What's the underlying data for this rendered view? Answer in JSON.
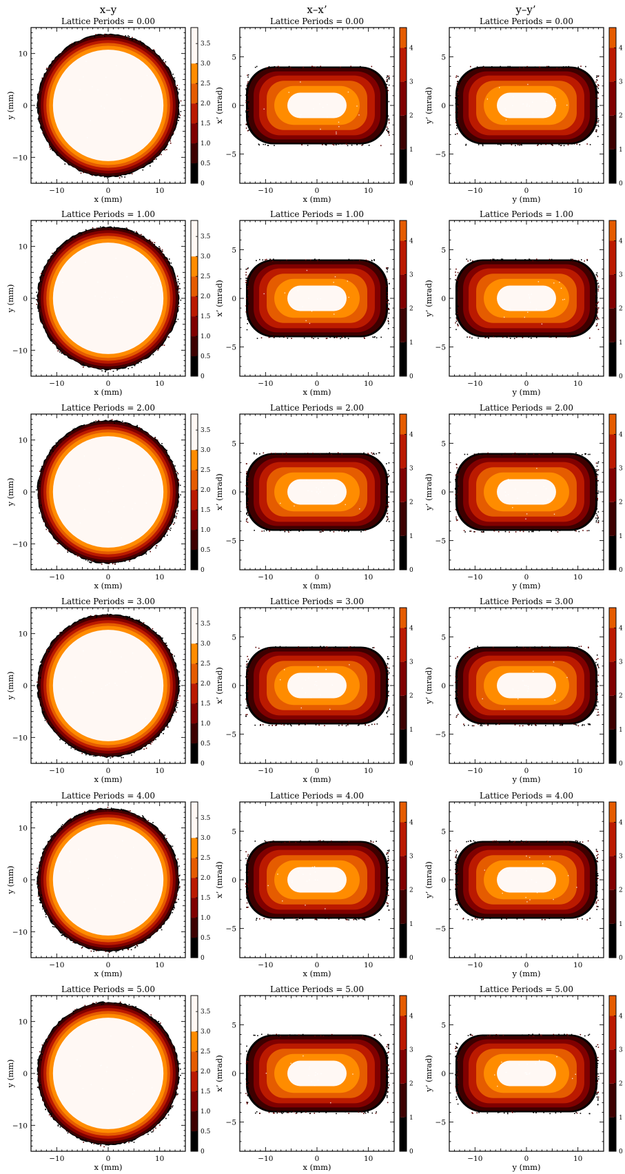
{
  "colors": {
    "levels": [
      "#000000",
      "#3d0000",
      "#800000",
      "#bb1a00",
      "#e55c00",
      "#ff8c00",
      "#fff8f4"
    ]
  },
  "figure": {
    "columns": [
      {
        "title": "x–y",
        "xlabel": "x (mm)",
        "ylabel": "y (mm)",
        "xticks": [
          "−10",
          "0",
          "10"
        ],
        "yticks": [
          "10",
          "0",
          "−10"
        ],
        "xlim": [
          -15,
          15
        ],
        "ylim": [
          -15,
          15
        ],
        "colorbar": {
          "ticks": [
            "3.5",
            "3.0",
            "2.5",
            "2.0",
            "1.5",
            "1.0",
            "0.5",
            "0"
          ],
          "max": 3.9
        }
      },
      {
        "title": "x–x’",
        "xlabel": "x (mm)",
        "ylabel": "x’ (mrad)",
        "xticks": [
          "−10",
          "0",
          "10"
        ],
        "yticks": [
          "5",
          "0",
          "−5"
        ],
        "xlim": [
          -15,
          15
        ],
        "ylim": [
          -8,
          8
        ],
        "colorbar": {
          "ticks": [
            "4",
            "3",
            "2",
            "1",
            "0"
          ],
          "max": 4.6
        }
      },
      {
        "title": "y–y’",
        "xlabel": "y (mm)",
        "ylabel": "y’ (mrad)",
        "xticks": [
          "−10",
          "0",
          "10"
        ],
        "yticks": [
          "5",
          "0",
          "−5"
        ],
        "xlim": [
          -15,
          15
        ],
        "ylim": [
          -8,
          8
        ],
        "colorbar": {
          "ticks": [
            "4",
            "3",
            "2",
            "1",
            "0"
          ],
          "max": 4.6
        }
      }
    ],
    "rows": [
      {
        "title": "Lattice Periods =  0.00"
      },
      {
        "title": "Lattice Periods =  1.00"
      },
      {
        "title": "Lattice Periods =  2.00"
      },
      {
        "title": "Lattice Periods =  3.00"
      },
      {
        "title": "Lattice Periods =  4.00"
      },
      {
        "title": "Lattice Periods =  5.00"
      }
    ]
  },
  "chart_data": {
    "type": "heatmap",
    "layout": "6 rows (lattice periods 0–5) × 3 columns (x–y, x–x’, y–y’) filled density contour plots",
    "panels": [
      {
        "column": "x–y",
        "description": "circular distribution, radius ~14 mm, uniform core to r ~11 mm",
        "contour_extent": {
          "x": [
            -13.8,
            13.8
          ],
          "y": [
            -13.8,
            13.8
          ]
        }
      },
      {
        "column": "x–x’",
        "description": "rounded rectangle, x ±14 mm, x’ ±4 mrad",
        "contour_extent": {
          "x": [
            -13.8,
            13.8
          ],
          "y": [
            -4.0,
            4.0
          ]
        }
      },
      {
        "column": "y–y’",
        "description": "rounded rectangle, y ±14 mm, y’ ±4 mrad",
        "contour_extent": {
          "x": [
            -13.8,
            13.8
          ],
          "y": [
            -4.0,
            4.0
          ]
        }
      }
    ],
    "lattice_periods": [
      0.0,
      1.0,
      2.0,
      3.0,
      4.0,
      5.0
    ],
    "colorbars": [
      {
        "column": "x–y",
        "levels": [
          0,
          0.5,
          1.0,
          1.5,
          2.0,
          2.5,
          3.0,
          3.5
        ]
      },
      {
        "column": "x–x’",
        "levels": [
          0,
          1,
          2,
          3,
          4
        ]
      },
      {
        "column": "y–y’",
        "levels": [
          0,
          1,
          2,
          3,
          4
        ]
      }
    ]
  }
}
